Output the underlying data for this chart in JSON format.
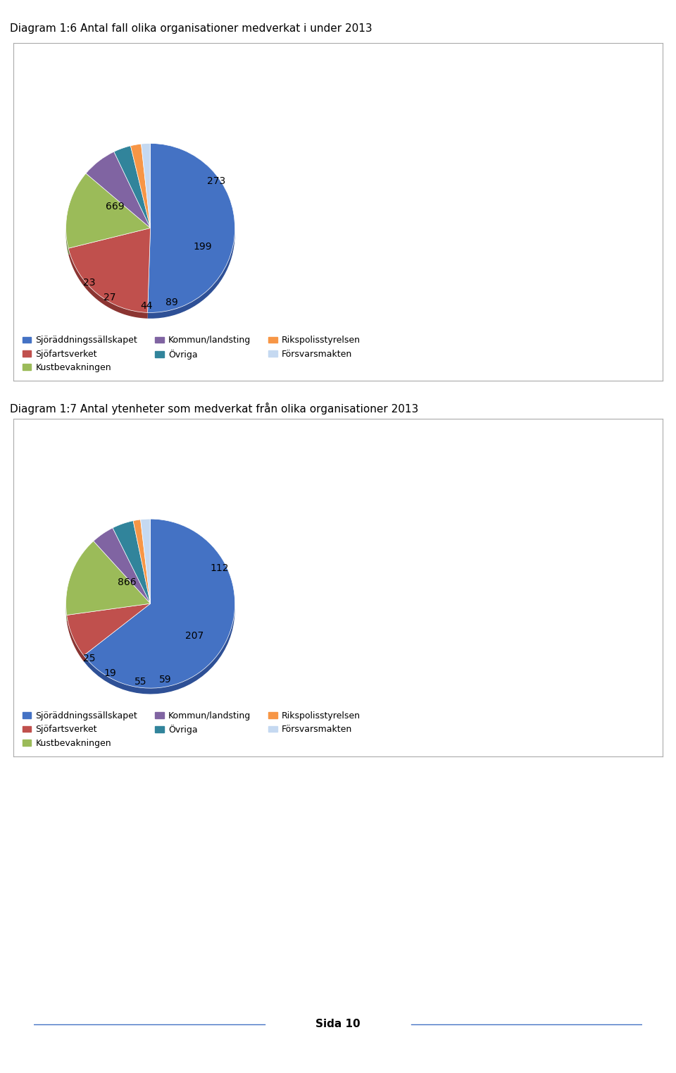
{
  "title1": "Diagram 1:6 Antal fall olika organisationer medverkat i under 2013",
  "title2": "Diagram 1:7 Antal ytenheter som medverkat från olika organisationer 2013",
  "page_label": "Sida 10",
  "legend_labels": [
    "Sjöräddningssällskapet",
    "Sjöfartsverket",
    "Kustbevakningen",
    "Kommun/landsting",
    "Övriga",
    "Rikspolisstyrelsen",
    "Försvarsmakten"
  ],
  "legend_colors": [
    "#4472C4",
    "#C0504D",
    "#9BBB59",
    "#8064A2",
    "#31849B",
    "#F79646",
    "#C5D9F1"
  ],
  "chart1_data": {
    "values": [
      669,
      273,
      199,
      89,
      44,
      27,
      23
    ],
    "colors": [
      "#4472C4",
      "#C0504D",
      "#9BBB59",
      "#8064A2",
      "#31849B",
      "#F79646",
      "#C5D9F1"
    ],
    "shadow_colors": [
      "#2E5096",
      "#8B3532",
      "#6A8040",
      "#573E71",
      "#1F5C6B",
      "#A86020",
      "#8FA8C8"
    ],
    "labels": [
      "669",
      "273",
      "199",
      "89",
      "44",
      "27",
      "23"
    ],
    "label_x": [
      -0.42,
      0.78,
      0.62,
      0.25,
      -0.05,
      -0.48,
      -0.72
    ],
    "label_y": [
      0.25,
      0.55,
      -0.22,
      -0.88,
      -0.92,
      -0.82,
      -0.65
    ]
  },
  "chart2_data": {
    "values": [
      866,
      112,
      207,
      59,
      55,
      19,
      25
    ],
    "colors": [
      "#4472C4",
      "#C0504D",
      "#9BBB59",
      "#8064A2",
      "#31849B",
      "#F79646",
      "#C5D9F1"
    ],
    "shadow_colors": [
      "#2E5096",
      "#8B3532",
      "#6A8040",
      "#573E71",
      "#1F5C6B",
      "#A86020",
      "#8FA8C8"
    ],
    "labels": [
      "866",
      "112",
      "207",
      "59",
      "55",
      "19",
      "25"
    ],
    "label_x": [
      -0.28,
      0.82,
      0.52,
      0.18,
      -0.12,
      -0.48,
      -0.72
    ],
    "label_y": [
      0.25,
      0.42,
      -0.38,
      -0.9,
      -0.92,
      -0.82,
      -0.65
    ]
  }
}
